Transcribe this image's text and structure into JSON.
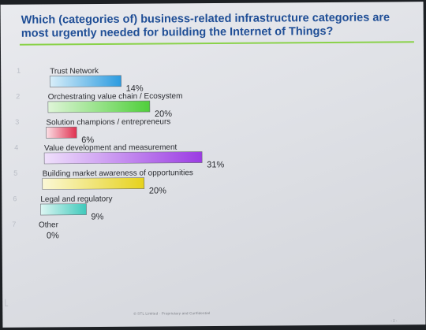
{
  "chart_data": {
    "type": "bar",
    "title": "Which (categories of) business-related infrastructure categories are most urgently needed for building the Internet of Things?",
    "categories": [
      "Trust Network",
      "Orchestrating value chain / Ecosystem",
      "Solution champions / entrepreneurs",
      "Value development and measurement",
      "Building market awareness of opportunities",
      "Legal and regulatory",
      "Other"
    ],
    "numbers": [
      "1",
      "2",
      "3",
      "4",
      "5",
      "6",
      "7"
    ],
    "values": [
      14,
      20,
      6,
      31,
      20,
      9,
      0
    ],
    "value_labels": [
      "14%",
      "20%",
      "6%",
      "31%",
      "20%",
      "9%",
      "0%"
    ],
    "value_unit": "%",
    "bar_colors": [
      [
        "#d8eef9",
        "#2b9be0"
      ],
      [
        "#dff5d8",
        "#4fcf3a"
      ],
      [
        "#fbe0e6",
        "#e0304f"
      ],
      [
        "#efe0fb",
        "#9b3ce3"
      ],
      [
        "#fbf8d6",
        "#e6d21c"
      ],
      [
        "#ddf6f3",
        "#3fc9bb"
      ],
      [
        "#e6e6e6",
        "#999999"
      ]
    ],
    "xlim": [
      0,
      31
    ],
    "grid": false,
    "legend": "none"
  },
  "title_color": "#1f4e96",
  "accent_rule_color": "#8ad24a",
  "footer": {
    "text": "© STL Limited · Proprietary and Confidential",
    "page": "- 2 -"
  }
}
